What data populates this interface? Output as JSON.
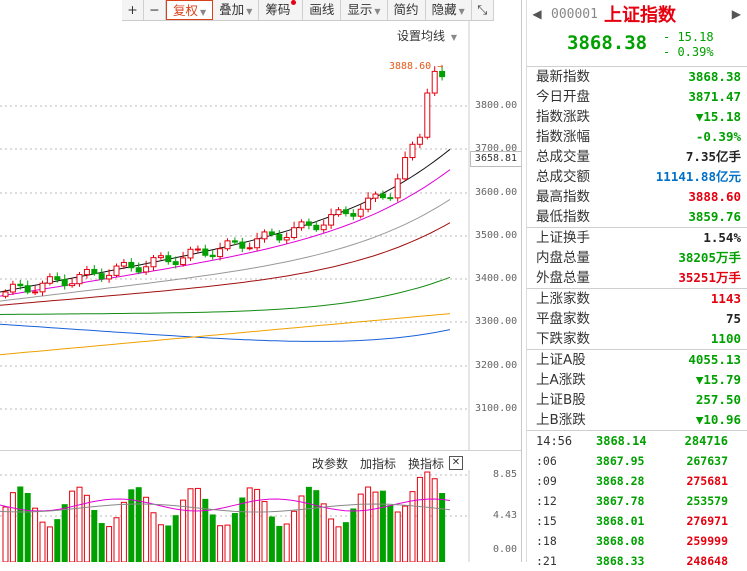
{
  "toolbar": {
    "items": [
      {
        "label": "+",
        "icon": true
      },
      {
        "label": "−",
        "icon": true
      },
      {
        "label": "复权",
        "dropdown": true,
        "active": true
      },
      {
        "label": "叠加",
        "dropdown": true
      },
      {
        "label": "筹码",
        "dot": true
      },
      {
        "label": "画线"
      },
      {
        "label": "显示",
        "dropdown": true
      },
      {
        "label": "简约"
      },
      {
        "label": "隐藏",
        "dropdown": true
      },
      {
        "label": "⤡",
        "icon": true
      }
    ]
  },
  "main_chart": {
    "ma_setting_label": "设置均线",
    "high_label": "3888.60",
    "axis_labels": [
      "3800.00",
      "3700.00",
      "3600.00",
      "3500.00",
      "3400.00",
      "3300.00",
      "3200.00",
      "3100.00"
    ],
    "current_box": "3658.81"
  },
  "sub_chart": {
    "buttons": [
      "改参数",
      "加指标",
      "换指标"
    ],
    "close_label": "✕",
    "axis_labels": [
      "8.85",
      "4.43",
      "0.00"
    ]
  },
  "panel": {
    "nav_prev": "◀",
    "code": "000001",
    "name": "上证指数",
    "nav_next": "▶",
    "price": "3868.38",
    "change": "- 15.18",
    "change_pct": "- 0.39%",
    "groups": [
      [
        {
          "k": "最新指数",
          "v": "3868.38",
          "c": "green"
        },
        {
          "k": "今日开盘",
          "v": "3871.47",
          "c": "green"
        },
        {
          "k": "指数涨跌",
          "v": "▼15.18",
          "c": "green"
        },
        {
          "k": "指数涨幅",
          "v": "-0.39%",
          "c": "green"
        },
        {
          "k": "总成交量",
          "v": "7.35亿手",
          "c": "dark"
        },
        {
          "k": "总成交额",
          "v": "11141.88亿元",
          "c": "blue"
        },
        {
          "k": "最高指数",
          "v": "3888.60",
          "c": "red"
        },
        {
          "k": "最低指数",
          "v": "3859.76",
          "c": "green"
        }
      ],
      [
        {
          "k": "上证换手",
          "v": "1.54%",
          "c": "dark"
        },
        {
          "k": "内盘总量",
          "v": "38205万手",
          "c": "green"
        },
        {
          "k": "外盘总量",
          "v": "35251万手",
          "c": "red"
        }
      ],
      [
        {
          "k": "上涨家数",
          "v": "1143",
          "c": "red"
        },
        {
          "k": "平盘家数",
          "v": "75",
          "c": "dark"
        },
        {
          "k": "下跌家数",
          "v": "1100",
          "c": "green"
        }
      ],
      [
        {
          "k": "上证A股",
          "v": "4055.13",
          "c": "green"
        },
        {
          "k": "上A涨跌",
          "v": "▼15.79",
          "c": "green"
        },
        {
          "k": "上证B股",
          "v": "257.50",
          "c": "green"
        },
        {
          "k": "上B涨跌",
          "v": "▼10.96",
          "c": "green"
        }
      ]
    ],
    "ticks": [
      {
        "t": "14:56",
        "p": "3868.14",
        "v": "284716",
        "c": "green"
      },
      {
        "t": ":06",
        "p": "3867.95",
        "v": "267637",
        "c": "green"
      },
      {
        "t": ":09",
        "p": "3868.28",
        "v": "275681",
        "c": "red"
      },
      {
        "t": ":12",
        "p": "3867.78",
        "v": "253579",
        "c": "green"
      },
      {
        "t": ":15",
        "p": "3868.01",
        "v": "276971",
        "c": "red"
      },
      {
        "t": ":18",
        "p": "3868.08",
        "v": "259999",
        "c": "red"
      },
      {
        "t": ":21",
        "p": "3868.33",
        "v": "248648",
        "c": "red"
      }
    ]
  }
}
